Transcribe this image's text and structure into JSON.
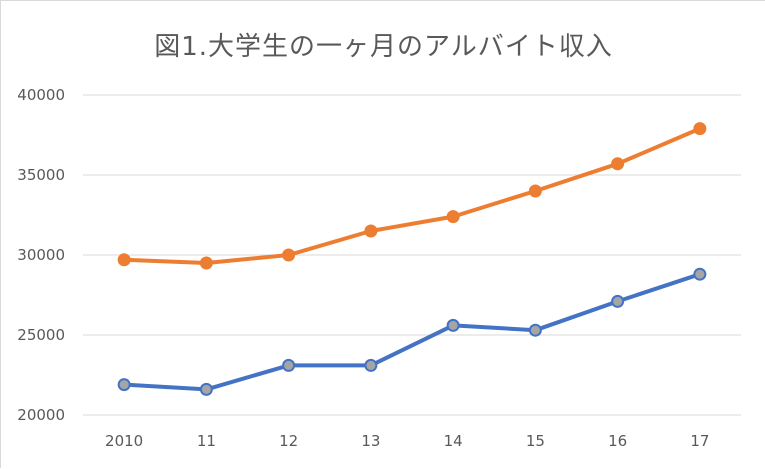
{
  "chart_data": {
    "type": "line",
    "title": "図1.大学生の一ヶ月のアルバイト収入",
    "xlabel": "",
    "ylabel": "",
    "categories": [
      "2010",
      "11",
      "12",
      "13",
      "14",
      "15",
      "16",
      "17"
    ],
    "ylim": [
      20000,
      40000
    ],
    "yticks": [
      20000,
      25000,
      30000,
      35000,
      40000
    ],
    "grid": true,
    "legend": "none",
    "series": [
      {
        "color": "#ed7d31",
        "marker_fill": "#ed7d31",
        "values": [
          29700,
          29500,
          30000,
          31500,
          32400,
          34000,
          35700,
          37900
        ]
      },
      {
        "color": "#4472c4",
        "marker_fill": "#a5a5a5",
        "values": [
          21900,
          21600,
          23100,
          23100,
          25600,
          25300,
          27100,
          28800
        ]
      }
    ]
  }
}
